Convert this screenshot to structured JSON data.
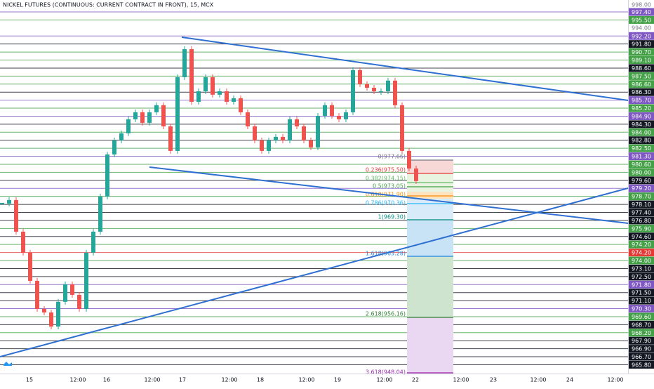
{
  "title": "NICKEL FUTURES (CONTINUOUS: CURRENT CONTRACT IN FRONT), 15, MCX",
  "price_axis": [
    {
      "text": "998.00",
      "style": "plain"
    },
    {
      "text": "997.40",
      "style": "purple"
    },
    {
      "text": "995.50",
      "style": "green"
    },
    {
      "text": "994.00",
      "style": "plain"
    },
    {
      "text": "992.20",
      "style": "purple"
    },
    {
      "text": "991.80",
      "style": "black"
    },
    {
      "text": "990.70",
      "style": "green"
    },
    {
      "text": "989.10",
      "style": "green"
    },
    {
      "text": "988.60",
      "style": "black"
    },
    {
      "text": "987.50",
      "style": "green"
    },
    {
      "text": "986.60",
      "style": "green"
    },
    {
      "text": "986.30",
      "style": "black"
    },
    {
      "text": "985.70",
      "style": "purple"
    },
    {
      "text": "985.20",
      "style": "green"
    },
    {
      "text": "984.90",
      "style": "purple"
    },
    {
      "text": "984.30",
      "style": "black"
    },
    {
      "text": "984.00",
      "style": "green"
    },
    {
      "text": "982.80",
      "style": "black"
    },
    {
      "text": "982.50",
      "style": "green"
    },
    {
      "text": "981.30",
      "style": "purple"
    },
    {
      "text": "980.60",
      "style": "green"
    },
    {
      "text": "980.00",
      "style": "green"
    },
    {
      "text": "979.60",
      "style": "black"
    },
    {
      "text": "979.20",
      "style": "purple"
    },
    {
      "text": "978.70",
      "style": "green"
    },
    {
      "text": "978.10",
      "style": "black"
    },
    {
      "text": "977.40",
      "style": "black"
    },
    {
      "text": "976.80",
      "style": "black"
    },
    {
      "text": "975.90",
      "style": "green"
    },
    {
      "text": "974.60",
      "style": "black"
    },
    {
      "text": "974.20",
      "style": "green"
    },
    {
      "text": "974.20",
      "style": "red"
    },
    {
      "text": "974.00",
      "style": "green"
    },
    {
      "text": "973.10",
      "style": "black"
    },
    {
      "text": "972.50",
      "style": "black"
    },
    {
      "text": "971.80",
      "style": "purple"
    },
    {
      "text": "971.50",
      "style": "black"
    },
    {
      "text": "971.10",
      "style": "black"
    },
    {
      "text": "970.30",
      "style": "purple"
    },
    {
      "text": "969.60",
      "style": "green"
    },
    {
      "text": "968.70",
      "style": "black"
    },
    {
      "text": "968.20",
      "style": "green"
    },
    {
      "text": "967.90",
      "style": "black"
    },
    {
      "text": "966.90",
      "style": "black"
    },
    {
      "text": "966.70",
      "style": "black"
    },
    {
      "text": "965.80",
      "style": "black"
    }
  ],
  "time_axis": [
    "15",
    "12:00",
    "16",
    "12:00",
    "17",
    "12:00",
    "18",
    "12:00",
    "19",
    "12:00",
    "22",
    "12:00",
    "23",
    "12:00",
    "24",
    "12:00"
  ],
  "fib_labels": [
    {
      "text": "0(977.66)",
      "color": "#787b86"
    },
    {
      "text": "0.236(975.50)",
      "color": "#e53935"
    },
    {
      "text": "0.382(974.15)",
      "color": "#66bb6a"
    },
    {
      "text": "0.5(973.05)",
      "color": "#43a047"
    },
    {
      "text": "0.618(971.90)",
      "color": "#fb8c00"
    },
    {
      "text": "0.786(970.36)",
      "color": "#29b6f6"
    },
    {
      "text": "1(969.30)",
      "color": "#00897b"
    },
    {
      "text": "1.618(963.28)",
      "color": "#1e88e5"
    },
    {
      "text": "2.618(956.16)",
      "color": "#2e7d32"
    },
    {
      "text": "3.618(948.04)",
      "color": "#9c27b0"
    }
  ],
  "price": {
    "ylim": [
      965.25,
      998.44
    ],
    "closes": [
      980.62,
      980.93,
      978.16,
      976.32,
      973.86,
      971.4,
      971.09,
      969.86,
      972.02,
      973.55,
      972.63,
      971.4,
      976.32,
      978.16,
      981.24,
      984.92,
      986.15,
      986.77,
      988.0,
      988.61,
      987.69,
      988.61,
      989.23,
      987.38,
      985.23,
      991.68,
      994.14,
      989.53,
      990.45,
      991.68,
      990.15,
      990.45,
      989.53,
      989.84,
      988.61,
      987.38,
      986.15,
      985.23,
      986.15,
      986.46,
      986.15,
      988.0,
      987.38,
      986.15,
      985.54,
      988.3,
      989.23,
      988.3,
      988.0,
      988.61,
      992.3,
      991.07,
      990.76,
      990.45,
      990.45,
      991.38,
      989.23,
      985.23,
      983.69,
      982.59
    ]
  }
}
